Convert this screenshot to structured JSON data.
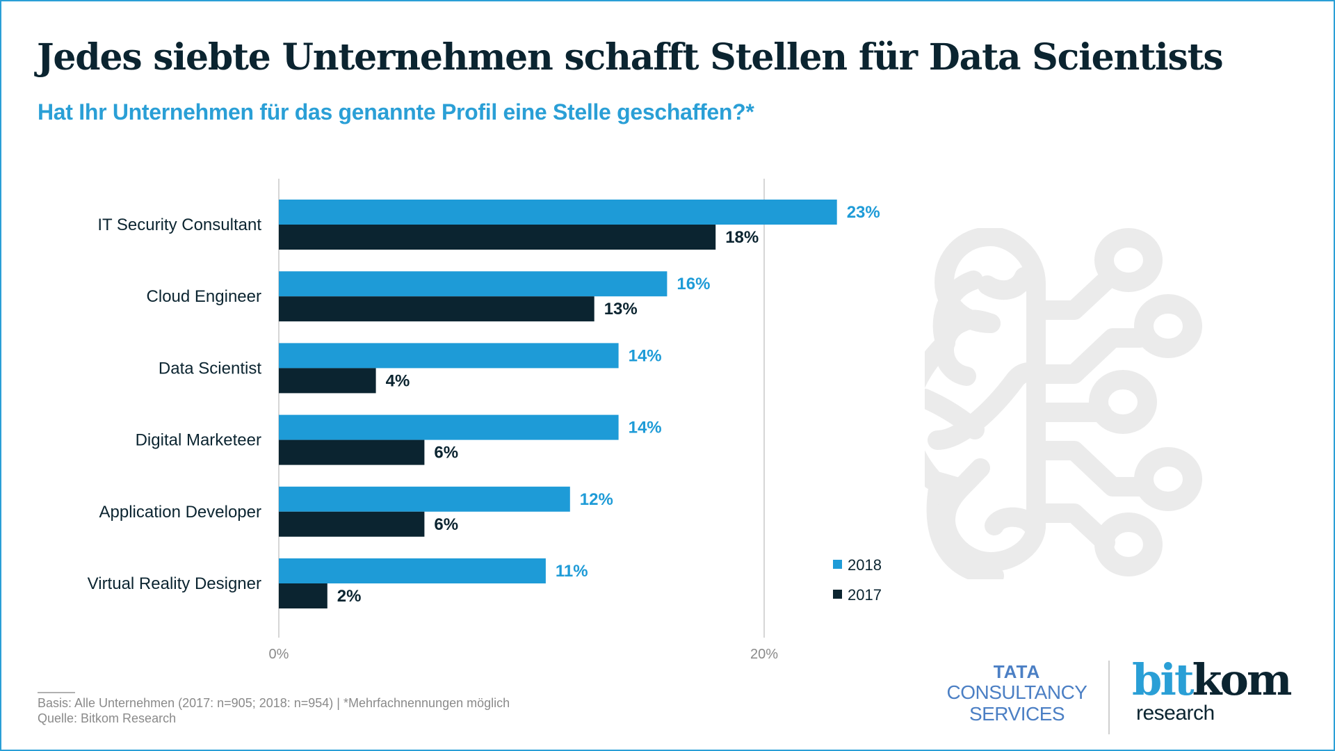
{
  "header": {
    "title": "Jedes siebte Unternehmen schafft Stellen für Data Scientists",
    "subtitle": "Hat Ihr Unternehmen für das genannte Profil eine Stelle geschaffen?*"
  },
  "colors": {
    "series_2018": "#1e9bd7",
    "series_2017": "#0b2430",
    "grid": "#c8c8c8",
    "frame": "#2a9fd6",
    "brain_icon": "#ebebeb"
  },
  "chart_data": {
    "type": "bar",
    "orientation": "horizontal",
    "title": "Jedes siebte Unternehmen schafft Stellen für Data Scientists",
    "subtitle": "Hat Ihr Unternehmen für das genannte Profil eine Stelle geschaffen?*",
    "categories": [
      "IT Security Consultant",
      "Cloud Engineer",
      "Data Scientist",
      "Digital Marketeer",
      "Application Developer",
      "Virtual Reality Designer"
    ],
    "series": [
      {
        "name": "2018",
        "values": [
          23,
          16,
          14,
          14,
          12,
          11
        ],
        "labels": [
          "23%",
          "16%",
          "14%",
          "14%",
          "12%",
          "11%"
        ]
      },
      {
        "name": "2017",
        "values": [
          18,
          13,
          4,
          6,
          6,
          2
        ],
        "labels": [
          "18%",
          "13%",
          "4%",
          "6%",
          "6%",
          "2%"
        ]
      }
    ],
    "xlabel": "",
    "ylabel": "",
    "xlim": [
      0,
      23
    ],
    "unit": "%",
    "ticks": [
      0,
      20
    ],
    "tick_labels": [
      "0%",
      "20%"
    ],
    "grid": true,
    "legend": {
      "position": "bottom-right",
      "entries": [
        "2018",
        "2017"
      ]
    }
  },
  "footer": {
    "note": "Basis: Alle Unternehmen (2017: n=905; 2018: n=954) | *Mehrfachnennungen möglich",
    "source": "Quelle: Bitkom Research"
  },
  "logos": {
    "tcs": {
      "line1": "TATA",
      "line2": "CONSULTANCY",
      "line3": "SERVICES"
    },
    "bitkom": {
      "bit": "bit",
      "kom": "kom",
      "sub": "research"
    }
  },
  "decor": {
    "icon": "brain-circuit-icon"
  }
}
